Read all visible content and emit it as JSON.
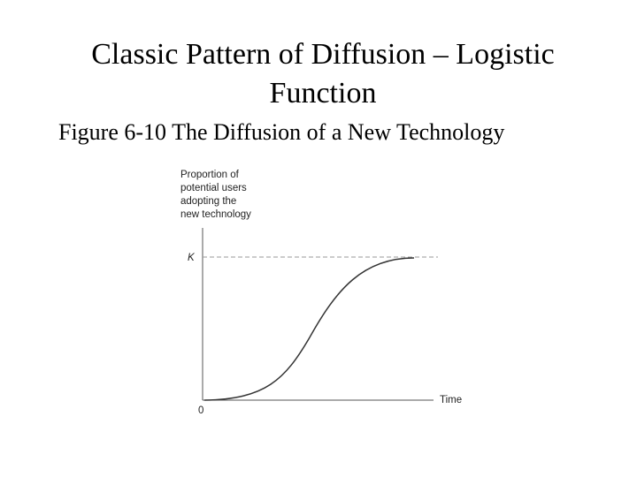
{
  "title": "Classic Pattern of Diffusion – Logistic Function",
  "caption": "Figure 6-10 The Diffusion of a New Technology",
  "figure": {
    "y_axis_label": [
      "Proportion of",
      "potential users",
      "adopting the",
      "new technology"
    ],
    "k_label": "K",
    "origin_label": "0",
    "x_axis_label": "Time"
  }
}
